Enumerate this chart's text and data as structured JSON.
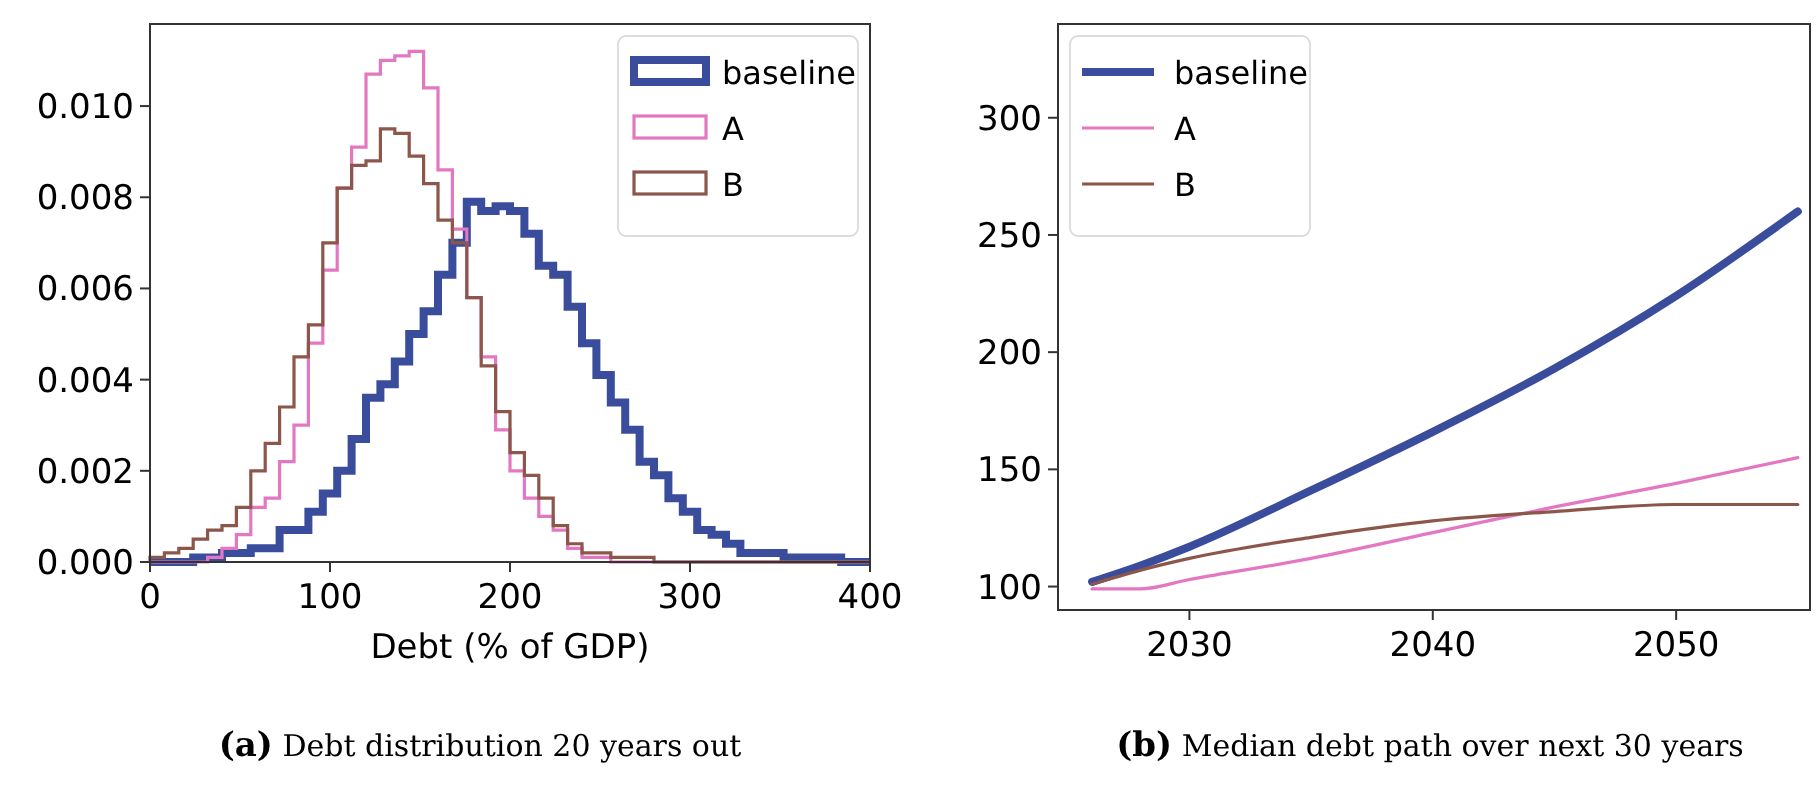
{
  "chart_data": [
    {
      "type": "histogram",
      "xlabel": "Debt (% of GDP)",
      "annotations": [
        "(a) Debt distribution 20 years out"
      ],
      "bins": [
        0,
        8,
        16,
        24,
        32,
        40,
        48,
        56,
        64,
        72,
        80,
        88,
        96,
        104,
        112,
        120,
        128,
        136,
        144,
        152,
        160,
        168,
        176,
        184,
        192,
        200,
        208,
        216,
        224,
        232,
        240,
        248,
        256,
        264,
        272,
        280,
        288,
        296,
        304,
        312,
        320,
        328,
        336,
        344,
        352,
        360,
        368,
        376,
        384,
        392,
        400
      ],
      "series": [
        {
          "name": "baseline",
          "color": "#3a4c9c",
          "values": [
            0,
            0,
            0,
            0.0001,
            0.0001,
            0.0002,
            0.0002,
            0.0003,
            0.0003,
            0.0007,
            0.0007,
            0.0011,
            0.0015,
            0.002,
            0.0027,
            0.0036,
            0.0039,
            0.0044,
            0.005,
            0.0055,
            0.0063,
            0.007,
            0.0079,
            0.0077,
            0.0078,
            0.0077,
            0.0072,
            0.0065,
            0.0063,
            0.0056,
            0.0048,
            0.0041,
            0.0035,
            0.0029,
            0.0022,
            0.0019,
            0.0014,
            0.0011,
            0.0007,
            0.0006,
            0.0004,
            0.0002,
            0.0002,
            0.0002,
            0.0001,
            0.0001,
            0.0001,
            0.0001,
            0,
            0
          ]
        },
        {
          "name": "A",
          "color": "#e377c2",
          "values": [
            0,
            0,
            0,
            0,
            0.0001,
            0.0003,
            0.0006,
            0.0012,
            0.0014,
            0.0022,
            0.003,
            0.0048,
            0.0064,
            0.0082,
            0.0091,
            0.0107,
            0.011,
            0.0111,
            0.0112,
            0.0104,
            0.0086,
            0.0073,
            0.0058,
            0.0045,
            0.0029,
            0.002,
            0.0014,
            0.001,
            0.0007,
            0.0003,
            0.0001,
            0.0001,
            0,
            0,
            0,
            0,
            0,
            0,
            0,
            0,
            0,
            0,
            0,
            0,
            0,
            0,
            0,
            0,
            0,
            0
          ]
        },
        {
          "name": "B",
          "color": "#8c564b",
          "values": [
            0.0001,
            0.0002,
            0.0003,
            0.0005,
            0.0007,
            0.0008,
            0.0012,
            0.002,
            0.0026,
            0.0034,
            0.0045,
            0.0052,
            0.007,
            0.0082,
            0.0087,
            0.0088,
            0.0095,
            0.0094,
            0.0089,
            0.0083,
            0.0075,
            0.007,
            0.0058,
            0.0043,
            0.0033,
            0.0024,
            0.0019,
            0.0014,
            0.0008,
            0.0004,
            0.0002,
            0.0002,
            0.0001,
            0.0001,
            0.0001,
            0,
            0,
            0,
            0,
            0,
            0,
            0,
            0,
            0,
            0,
            0,
            0,
            0,
            0,
            0
          ]
        }
      ],
      "xlim": [
        0,
        400
      ],
      "xticks": [
        0,
        100,
        200,
        300,
        400
      ],
      "ylim": [
        0,
        0.0118
      ],
      "yticks": [
        {
          "value": 0,
          "label": "0.000"
        },
        {
          "value": 0.002,
          "label": "0.002"
        },
        {
          "value": 0.004,
          "label": "0.004"
        },
        {
          "value": 0.006,
          "label": "0.006"
        },
        {
          "value": 0.008,
          "label": "0.008"
        },
        {
          "value": 0.01,
          "label": "0.010"
        }
      ],
      "legend": "top right",
      "grid": false
    },
    {
      "type": "line",
      "annotations": [
        "(b) Median debt path over next 30 years"
      ],
      "x": [
        2026,
        2028,
        2030,
        2035,
        2040,
        2045,
        2050,
        2055
      ],
      "series": [
        {
          "name": "baseline",
          "color": "#3a4c9c",
          "values": [
            102,
            109,
            117,
            141,
            166,
            193,
            224,
            260
          ]
        },
        {
          "name": "A",
          "color": "#e377c2",
          "values": [
            99,
            99,
            103,
            112,
            123,
            134,
            144,
            155
          ]
        },
        {
          "name": "B",
          "color": "#8c564b",
          "values": [
            101,
            107,
            112,
            121,
            128,
            132,
            135,
            135
          ]
        }
      ],
      "xlim": [
        2024.6,
        2055.5
      ],
      "xticks": [
        2030,
        2040,
        2050
      ],
      "ylim": [
        90,
        340
      ],
      "yticks": [
        100,
        150,
        200,
        250,
        300
      ],
      "legend": "top left",
      "grid": false,
      "marker": "none",
      "line_style": "solid"
    }
  ]
}
